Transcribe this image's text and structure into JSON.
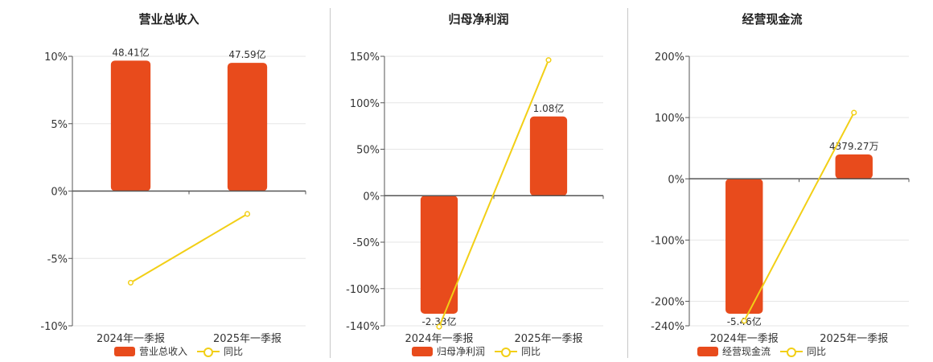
{
  "colors": {
    "bar": "#e84b1c",
    "line": "#f2cf16",
    "axis": "#555555",
    "grid": "#e6e6e6"
  },
  "chart_data": [
    {
      "type": "bar",
      "title": "营业总收入",
      "categories": [
        "2024年一季报",
        "2025年一季报"
      ],
      "bar_series": {
        "name": "营业总收入",
        "values": [
          48.41,
          47.59
        ],
        "labels": [
          "48.41亿",
          "47.59亿"
        ]
      },
      "line_series": {
        "name": "同比",
        "values": [
          -6.8,
          -1.7
        ]
      },
      "yticks": [
        "10%",
        "5%",
        "0%",
        "-5%",
        "-10%"
      ],
      "ylim": [
        -10,
        10
      ],
      "bar_ref_max": 50,
      "grid": true,
      "legend_position": "bottom"
    },
    {
      "type": "bar",
      "title": "归母净利润",
      "categories": [
        "2024年一季报",
        "2025年一季报"
      ],
      "bar_series": {
        "name": "归母净利润",
        "values": [
          -2.33,
          1.08
        ],
        "labels": [
          "-2.33亿",
          "1.08亿"
        ]
      },
      "line_series": {
        "name": "同比",
        "values": [
          -141,
          146
        ]
      },
      "yticks": [
        "150%",
        "100%",
        "50%",
        "0%",
        "-50%",
        "-100%",
        "-140%"
      ],
      "ylim": [
        -140,
        150
      ],
      "bar_ref_max": 1.9,
      "grid": true,
      "legend_position": "bottom"
    },
    {
      "type": "bar",
      "title": "经营现金流",
      "categories": [
        "2024年一季报",
        "2025年一季报"
      ],
      "bar_series": {
        "name": "经营现金流",
        "values": [
          -5.46,
          0.4379
        ],
        "labels": [
          "-5.46亿",
          "4379.27万"
        ]
      },
      "line_series": {
        "name": "同比",
        "values": [
          -232,
          108
        ]
      },
      "yticks": [
        "200%",
        "100%",
        "0%",
        "-100%",
        "-200%",
        "-240%"
      ],
      "ylim": [
        -240,
        200
      ],
      "bar_ref_max": 2.2,
      "grid": true,
      "legend_position": "bottom"
    }
  ]
}
